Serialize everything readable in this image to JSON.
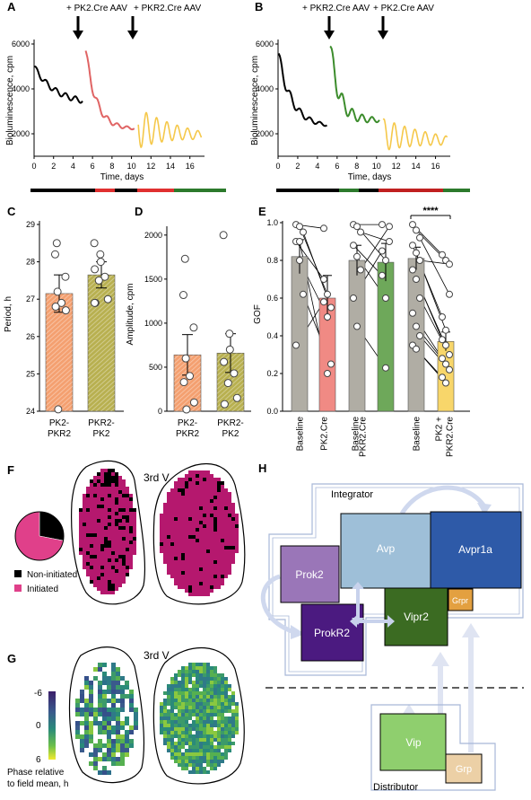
{
  "panels": {
    "A": {
      "label": "A",
      "arrow1": "+ PK2.Cre AAV",
      "arrow2": "+ PKR2.Cre AAV",
      "ylabel": "Bioluminescence, cpm",
      "xlabel": "Time, days",
      "yticks": [
        "2000",
        "4000",
        "6000"
      ],
      "xticks": [
        "0",
        "2",
        "4",
        "6",
        "8",
        "10",
        "12",
        "14",
        "16"
      ],
      "colors": {
        "baseline": "#000000",
        "phase1": "#e06464",
        "phase2": "#f5c84a"
      }
    },
    "B": {
      "label": "B",
      "arrow1": "+ PKR2.Cre AAV",
      "arrow2": "+ PK2.Cre AAV",
      "ylabel": "Bioluminescence, cpm",
      "xlabel": "Time, days",
      "yticks": [
        "2000",
        "4000",
        "6000"
      ],
      "xticks": [
        "0",
        "2",
        "4",
        "6",
        "8",
        "10",
        "12",
        "14",
        "16"
      ],
      "colors": {
        "baseline": "#000000",
        "phase1": "#3c8c2c",
        "phase2": "#f5c84a"
      }
    },
    "C": {
      "label": "C",
      "ylabel": "Period, h",
      "yticks": [
        "24",
        "25",
        "26",
        "27",
        "28",
        "29"
      ],
      "categories": [
        "PK2-\nPKR2",
        "PKR2-\nPK2"
      ],
      "cat1_l1": "PK2-",
      "cat1_l2": "PKR2",
      "cat2_l1": "PKR2-",
      "cat2_l2": "PK2"
    },
    "D": {
      "label": "D",
      "ylabel": "Amplitude, cpm",
      "yticks": [
        "0",
        "500",
        "1000",
        "1500",
        "2000"
      ],
      "cat1_l1": "PK2-",
      "cat1_l2": "PKR2",
      "cat2_l1": "PKR2-",
      "cat2_l2": "PK2"
    },
    "E": {
      "label": "E",
      "ylabel": "GOF",
      "yticks": [
        "0.0",
        "0.2",
        "0.4",
        "0.6",
        "0.8",
        "1.0"
      ],
      "categories": [
        "Baseline",
        "PK2.Cre",
        "Baseline",
        "PKR2.Cre",
        "Baseline",
        "PK2 +",
        "PKR2.Cre"
      ],
      "significance": "****"
    },
    "F": {
      "label": "F",
      "ventricle": "3rd V",
      "legend_non": "Non-initiated",
      "legend_init": "Initiated",
      "colors": {
        "initiated": "#b5186e",
        "non": "#000000",
        "pie_init": "#e0408a"
      }
    },
    "G": {
      "label": "G",
      "ventricle": "3rd V",
      "scale_top": "-6",
      "scale_mid": "0",
      "scale_bot": "6",
      "scale_label1": "Phase relative",
      "scale_label2": "to field mean, h"
    },
    "H": {
      "label": "H",
      "integrator": "Integrator",
      "distributor": "Distributor",
      "boxes": {
        "avp": "Avp",
        "avpr1a": "Avpr1a",
        "prok2": "Prok2",
        "prokr2": "ProkR2",
        "vipr2": "Vipr2",
        "grpr": "Grpr",
        "vip": "Vip",
        "grp": "Grp"
      }
    }
  },
  "chart_data": [
    {
      "type": "line",
      "panel": "A",
      "xlabel": "Time, days",
      "ylabel": "Bioluminescence, cpm",
      "xlim": [
        0,
        17.5
      ],
      "ylim": [
        1000,
        6200
      ]
    },
    {
      "type": "line",
      "panel": "B",
      "xlabel": "Time, days",
      "ylabel": "Bioluminescence, cpm",
      "xlim": [
        0,
        17.5
      ],
      "ylim": [
        1000,
        6200
      ]
    },
    {
      "type": "bar",
      "panel": "C",
      "ylabel": "Period, h",
      "ylim": [
        24,
        29
      ],
      "categories": [
        "PK2-PKR2",
        "PKR2-PK2"
      ],
      "values": [
        27.15,
        27.65
      ],
      "errors": [
        0.5,
        0.35
      ],
      "colors": [
        "#f4a070",
        "#b8b050"
      ],
      "points": [
        [
          28.5,
          28.2,
          27.6,
          27.2,
          26.9,
          26.8,
          26.7,
          24.05
        ],
        [
          28.5,
          28.2,
          28.0,
          27.8,
          27.6,
          27.5,
          27.0,
          26.9,
          26.9
        ]
      ]
    },
    {
      "type": "bar",
      "panel": "D",
      "ylabel": "Amplitude, cpm",
      "ylim": [
        0,
        2100
      ],
      "categories": [
        "PK2-PKR2",
        "PKR2-PK2"
      ],
      "values": [
        640,
        660
      ],
      "errors": [
        230,
        220
      ],
      "colors": [
        "#f4a070",
        "#b8b050"
      ],
      "points": [
        [
          1730,
          1320,
          950,
          600,
          400,
          330,
          100,
          20
        ],
        [
          2000,
          880,
          700,
          560,
          430,
          320,
          150,
          80
        ]
      ]
    },
    {
      "type": "bar",
      "panel": "E",
      "ylabel": "GOF",
      "ylim": [
        0,
        1.0
      ],
      "categories": [
        "Baseline",
        "PK2.Cre",
        "Baseline",
        "PKR2.Cre",
        "Baseline",
        "PK2 + PKR2.Cre"
      ],
      "values": [
        0.82,
        0.6,
        0.8,
        0.79,
        0.81,
        0.37
      ],
      "errors": [
        0.09,
        0.12,
        0.08,
        0.1,
        0.06,
        0.05
      ],
      "colors": [
        "#b0ada4",
        "#f08a84",
        "#b0ada4",
        "#6ea85a",
        "#b0ada4",
        "#f8d66a"
      ]
    },
    {
      "type": "pie",
      "panel": "F",
      "categories": [
        "Non-initiated",
        "Initiated"
      ],
      "values": [
        28,
        72
      ]
    }
  ]
}
